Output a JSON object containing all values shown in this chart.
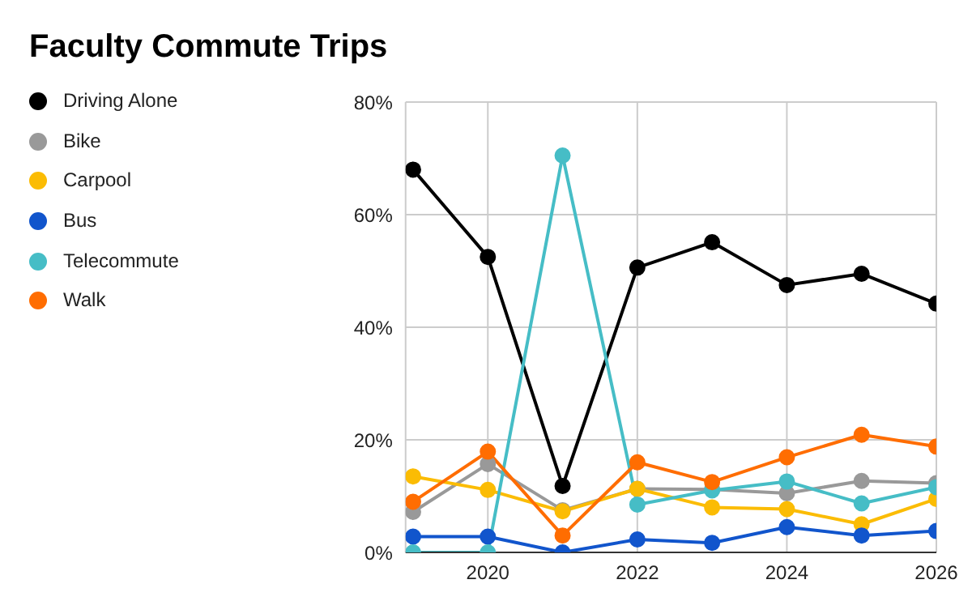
{
  "chart_data": {
    "type": "line",
    "title": "Faculty Commute Trips",
    "x": [
      2019,
      2020,
      2021,
      2022,
      2023,
      2024,
      2025,
      2026
    ],
    "series": [
      {
        "name": "Driving Alone",
        "color": "#000000",
        "values": [
          68,
          52.5,
          11.8,
          50.6,
          55.1,
          47.5,
          49.5,
          44.2
        ]
      },
      {
        "name": "Bike",
        "color": "#999999",
        "values": [
          7.2,
          15.7,
          7.5,
          11.3,
          11.2,
          10.5,
          12.7,
          12.3
        ]
      },
      {
        "name": "Carpool",
        "color": "#fbbc04",
        "values": [
          13.5,
          11.1,
          7.3,
          11.3,
          8,
          7.7,
          5,
          9.5
        ]
      },
      {
        "name": "Bus",
        "color": "#1155cc",
        "values": [
          2.8,
          2.8,
          0,
          2.3,
          1.7,
          4.5,
          3,
          3.8
        ]
      },
      {
        "name": "Telecommute",
        "color": "#46bdc6",
        "values": [
          0,
          0,
          70.5,
          8.5,
          11,
          12.6,
          8.7,
          11.6
        ]
      },
      {
        "name": "Walk",
        "color": "#ff6d01",
        "values": [
          9,
          17.9,
          3,
          16,
          12.5,
          16.9,
          20.9,
          18.8
        ]
      }
    ],
    "xlim": [
      2018.9,
      2026
    ],
    "xticks": [
      2020,
      2022,
      2024,
      2026
    ],
    "ylim": [
      0,
      80
    ],
    "yticks": [
      {
        "value": 0,
        "label": "0%"
      },
      {
        "value": 20,
        "label": "20%"
      },
      {
        "value": 40,
        "label": "40%"
      },
      {
        "value": 60,
        "label": "60%"
      },
      {
        "value": 80,
        "label": "80%"
      }
    ],
    "grid": true,
    "legend": "left",
    "marker": "circle",
    "line_style": "solid"
  }
}
